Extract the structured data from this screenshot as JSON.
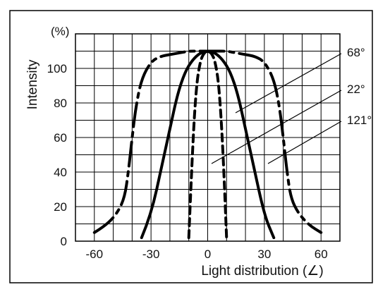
{
  "chart_data": {
    "type": "line",
    "xlabel": "Light distribution (∠)",
    "ylabel": "Intensity",
    "yunit": "(%)",
    "xlim": [
      -70,
      70
    ],
    "ylim": [
      0,
      120
    ],
    "xticks": [
      "-60",
      "-30",
      "0",
      "30",
      "60"
    ],
    "xtick_values": [
      -60,
      -30,
      0,
      30,
      60
    ],
    "yticks": [
      "0",
      "20",
      "40",
      "60",
      "80",
      "100"
    ],
    "ytick_values": [
      0,
      20,
      40,
      60,
      80,
      100
    ],
    "grid": true,
    "series": [
      {
        "name": "68°",
        "style": "dash-dot",
        "x": [
          -60,
          -54,
          -48,
          -44,
          -42,
          -40,
          -38,
          -35,
          -30,
          -25,
          -20,
          -15,
          -10,
          -5,
          0,
          5,
          10,
          15,
          20,
          25,
          30,
          35,
          38,
          40,
          42,
          44,
          48,
          54,
          60
        ],
        "y": [
          5,
          9,
          16,
          25,
          40,
          60,
          78,
          94,
          104,
          107,
          108,
          109,
          110,
          110,
          110,
          110,
          110,
          109,
          108,
          107,
          104,
          94,
          78,
          60,
          40,
          25,
          16,
          9,
          5
        ]
      },
      {
        "name": "22°",
        "style": "dashed",
        "x": [
          -10,
          -8,
          -6,
          -4,
          -2,
          0,
          2,
          4,
          6,
          8,
          10
        ],
        "y": [
          2,
          55,
          90,
          104,
          109,
          110,
          109,
          104,
          90,
          55,
          2
        ]
      },
      {
        "name": "121°",
        "style": "solid",
        "x": [
          -35,
          -30,
          -24,
          -20,
          -16,
          -12,
          -8,
          -4,
          0,
          4,
          8,
          12,
          16,
          20,
          24,
          30,
          35
        ],
        "y": [
          2,
          15,
          45,
          65,
          85,
          98,
          105,
          109,
          110,
          109,
          105,
          98,
          85,
          65,
          45,
          15,
          2
        ]
      }
    ],
    "callouts": [
      {
        "label": "68°"
      },
      {
        "label": "22°"
      },
      {
        "label": "121°"
      }
    ],
    "colors": {
      "line": "#000000",
      "grid": "#000000",
      "background": "#ffffff"
    }
  }
}
